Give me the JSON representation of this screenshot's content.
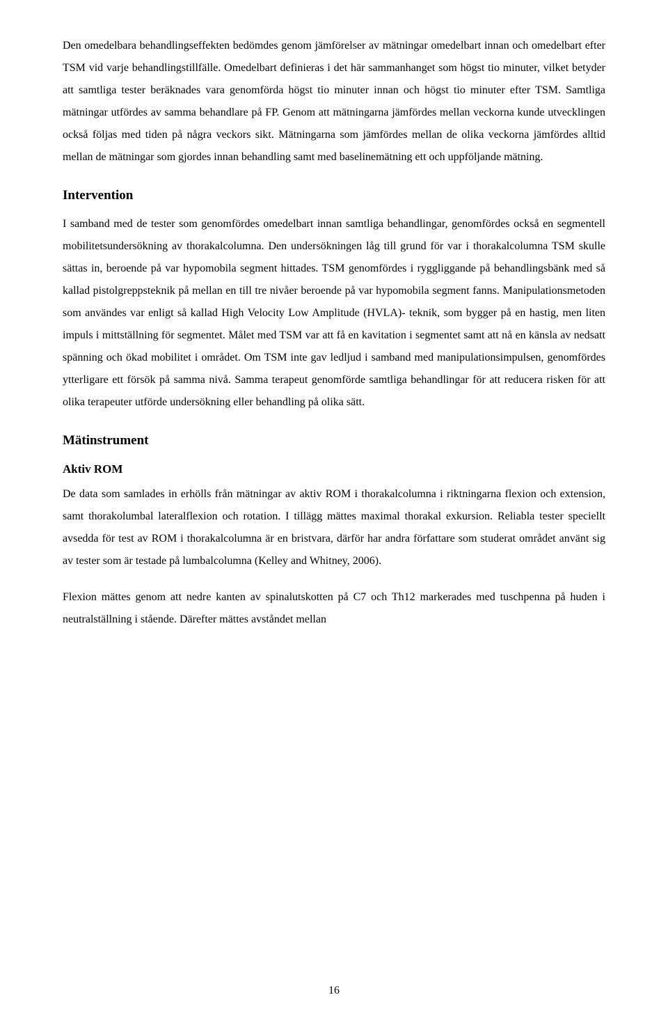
{
  "paragraphs": {
    "p1": "Den omedelbara behandlingseffekten bedömdes genom jämförelser av mätningar omedelbart innan och omedelbart efter TSM vid varje behandlingstillfälle. Omedelbart definieras i det här sammanhanget som högst tio minuter, vilket betyder att samtliga tester beräknades vara genomförda högst tio minuter innan och högst tio minuter efter TSM. Samtliga mätningar utfördes av samma behandlare på FP. Genom att mätningarna jämfördes mellan veckorna kunde utvecklingen också följas med tiden på några veckors sikt. Mätningarna som jämfördes mellan de olika veckorna jämfördes alltid mellan de mätningar som gjordes innan behandling samt med baselinemätning ett och uppföljande mätning.",
    "p2": "I samband med de tester som genomfördes omedelbart innan samtliga behandlingar, genomfördes också en segmentell mobilitetsundersökning av thorakalcolumna. Den undersökningen låg till grund för var i thorakalcolumna TSM skulle sättas in, beroende på var hypomobila segment hittades. TSM genomfördes i ryggliggande på behandlingsbänk med så kallad pistolgreppsteknik på mellan en till tre nivåer beroende på var hypomobila segment fanns. Manipulationsmetoden som användes var enligt så kallad High Velocity Low Amplitude (HVLA)- teknik, som bygger på en hastig, men liten impuls i mittställning för segmentet. Målet med TSM var att få en kavitation i segmentet samt att nå en känsla av nedsatt spänning och ökad mobilitet i området. Om TSM inte gav ledljud i samband med manipulationsimpulsen, genomfördes ytterligare ett försök på samma nivå. Samma terapeut genomförde samtliga behandlingar för att reducera risken för att olika terapeuter utförde undersökning eller behandling på olika sätt.",
    "p3": "De data som samlades in erhölls från mätningar av aktiv ROM i thorakalcolumna i riktningarna flexion och extension, samt thorakolumbal lateralflexion och rotation. I tillägg mättes maximal thorakal exkursion. Reliabla tester speciellt avsedda för test av ROM i thorakalcolumna är en bristvara, därför har andra författare som studerat området använt sig av tester som är testade på lumbalcolumna (Kelley and Whitney, 2006).",
    "p4": "Flexion mättes genom att nedre kanten av spinalutskotten på C7 och Th12 markerades med tuschpenna på huden i neutralställning i stående. Därefter mättes avståndet mellan"
  },
  "headings": {
    "intervention": "Intervention",
    "matinstrument": "Mätinstrument",
    "aktivrom": "Aktiv ROM"
  },
  "pageNumber": "16"
}
